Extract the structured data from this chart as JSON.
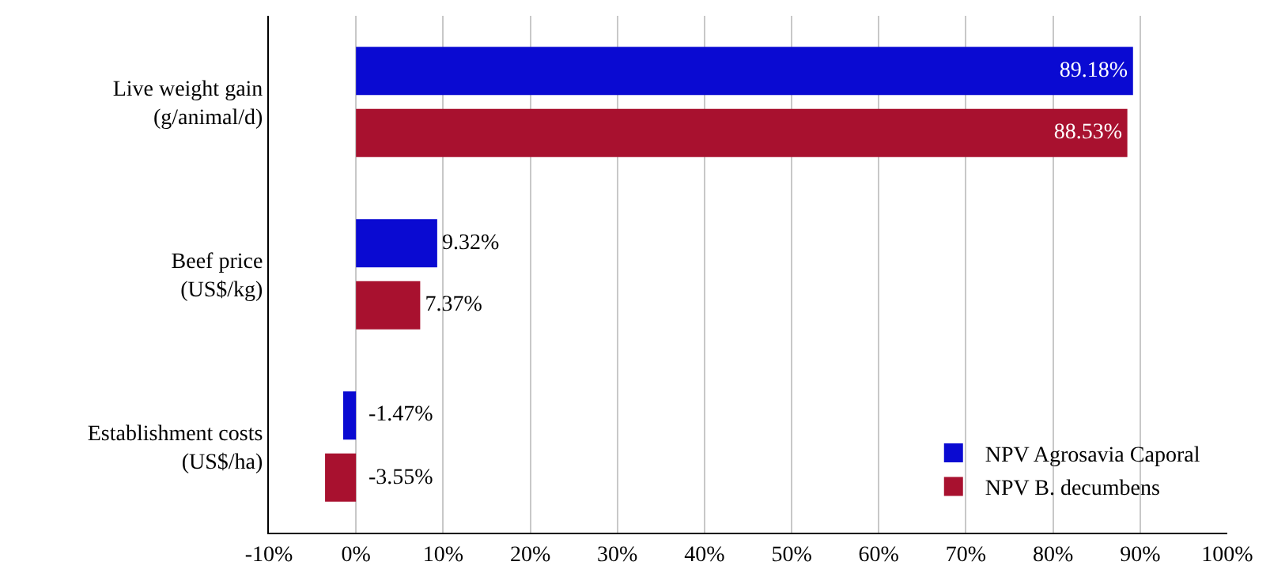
{
  "chart_data": {
    "type": "bar",
    "orientation": "horizontal",
    "categories": [
      "Live weight gain\n(g/animal/d)",
      "Beef price\n(US$/kg)",
      "Establishment costs\n(US$/ha)"
    ],
    "series": [
      {
        "name": "NPV Agrosavia Caporal",
        "color": "#0a0ad2",
        "values": [
          89.18,
          9.32,
          -1.47
        ],
        "value_labels": [
          "89.18%",
          "9.32%",
          "-1.47%"
        ]
      },
      {
        "name": "NPV B. decumbens",
        "color": "#a8112f",
        "values": [
          88.53,
          7.37,
          -3.55
        ],
        "value_labels": [
          "88.53%",
          "7.37%",
          "-3.55%"
        ]
      }
    ],
    "xlim": [
      -10,
      100
    ],
    "xticks": [
      {
        "value": -10,
        "label": "-10%"
      },
      {
        "value": 0,
        "label": "0%"
      },
      {
        "value": 10,
        "label": "10%"
      },
      {
        "value": 20,
        "label": "20%"
      },
      {
        "value": 30,
        "label": "30%"
      },
      {
        "value": 40,
        "label": "40%"
      },
      {
        "value": 50,
        "label": "50%"
      },
      {
        "value": 60,
        "label": "60%"
      },
      {
        "value": 70,
        "label": "70%"
      },
      {
        "value": 80,
        "label": "80%"
      },
      {
        "value": 90,
        "label": "90%"
      },
      {
        "value": 100,
        "label": "100%"
      }
    ],
    "grid": "x",
    "legend": "bottom right"
  }
}
